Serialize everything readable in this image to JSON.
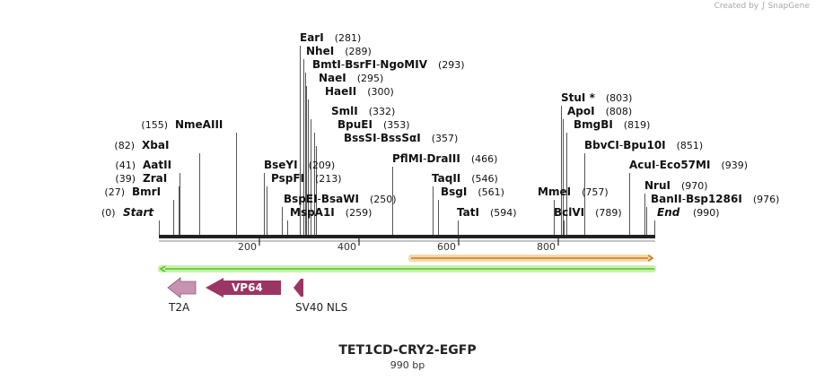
{
  "credit": {
    "prefix": "Created by",
    "brand": "SnapGene"
  },
  "construct": {
    "name": "TET1CD-CRY2-EGFP",
    "length_label": "990 bp",
    "length": 990
  },
  "start_label": {
    "pos": "(0)",
    "name": "Start"
  },
  "end_label": {
    "pos": "(990)",
    "name": "End"
  },
  "ruler_ticks": [
    "200",
    "400",
    "600",
    "800"
  ],
  "sites": [
    {
      "pos": "(281)",
      "names": [
        {
          "t": "EarI"
        }
      ]
    },
    {
      "pos": "(289)",
      "names": [
        {
          "t": "NheI"
        }
      ]
    },
    {
      "pos": "(293)",
      "names": [
        {
          "t": "BmtI"
        },
        {
          "t": "BsrFI"
        },
        {
          "t": "NgoMIV"
        }
      ]
    },
    {
      "pos": "(295)",
      "names": [
        {
          "t": "NaeI"
        }
      ]
    },
    {
      "pos": "(300)",
      "names": [
        {
          "t": "HaeII"
        }
      ]
    },
    {
      "pos": "(332)",
      "names": [
        {
          "t": "SmlI"
        }
      ]
    },
    {
      "pos": "(353)",
      "names": [
        {
          "t": "BpuEI"
        }
      ]
    },
    {
      "pos": "(357)",
      "names": [
        {
          "t": "BssSI"
        },
        {
          "t": "BssSαI"
        }
      ]
    },
    {
      "pos": "(155)",
      "names": [
        {
          "t": "NmeAIII"
        }
      ]
    },
    {
      "pos": "(82)",
      "names": [
        {
          "t": "XbaI"
        }
      ]
    },
    {
      "pos": "(41)",
      "names": [
        {
          "t": "AatII"
        }
      ]
    },
    {
      "pos": "(39)",
      "names": [
        {
          "t": "ZraI"
        }
      ]
    },
    {
      "pos": "(27)",
      "names": [
        {
          "t": "BmrI"
        }
      ]
    },
    {
      "pos": "(209)",
      "names": [
        {
          "t": "BseYI"
        }
      ]
    },
    {
      "pos": "(213)",
      "names": [
        {
          "t": "PspFI"
        }
      ]
    },
    {
      "pos": "(250)",
      "names": [
        {
          "t": "BspEI"
        },
        {
          "t": "BsaWI"
        }
      ]
    },
    {
      "pos": "(259)",
      "names": [
        {
          "t": "MspA1I"
        }
      ]
    },
    {
      "pos": "(466)",
      "names": [
        {
          "t": "PflMI"
        },
        {
          "t": "DraIII"
        }
      ]
    },
    {
      "pos": "(546)",
      "names": [
        {
          "t": "TaqII"
        }
      ]
    },
    {
      "pos": "(561)",
      "names": [
        {
          "t": "BsgI"
        }
      ]
    },
    {
      "pos": "(594)",
      "names": [
        {
          "t": "TatI"
        }
      ]
    },
    {
      "pos": "(803)",
      "names": [
        {
          "t": "StuI *"
        }
      ]
    },
    {
      "pos": "(808)",
      "names": [
        {
          "t": "ApoI"
        }
      ]
    },
    {
      "pos": "(819)",
      "names": [
        {
          "t": "BmgBI"
        }
      ]
    },
    {
      "pos": "(851)",
      "names": [
        {
          "t": "BbvCI"
        },
        {
          "t": "Bpu10I"
        }
      ]
    },
    {
      "pos": "(939)",
      "names": [
        {
          "t": "AcuI"
        },
        {
          "t": "Eco57MI"
        }
      ]
    },
    {
      "pos": "(757)",
      "names": [
        {
          "t": "MmeI"
        }
      ]
    },
    {
      "pos": "(970)",
      "names": [
        {
          "t": "NruI"
        }
      ]
    },
    {
      "pos": "(789)",
      "names": [
        {
          "t": "BclVI"
        }
      ]
    },
    {
      "pos": "(976)",
      "names": [
        {
          "t": "BanII"
        },
        {
          "t": "Bsp1286I"
        }
      ]
    }
  ],
  "features": [
    {
      "name": "T2A",
      "color": "#c893b0",
      "direction": "reverse"
    },
    {
      "name": "VP64",
      "color": "#9b3563",
      "direction": "reverse"
    },
    {
      "name": "SV40 NLS",
      "color": "#9b3563",
      "direction": "reverse"
    }
  ],
  "colors": {
    "backbone": "#222222",
    "green_track": "#54c21e",
    "green_glow": "#c9f0ae",
    "orange_track": "#c47a1f",
    "orange_glow": "#f6d8a9",
    "leader_line": "#555555"
  }
}
